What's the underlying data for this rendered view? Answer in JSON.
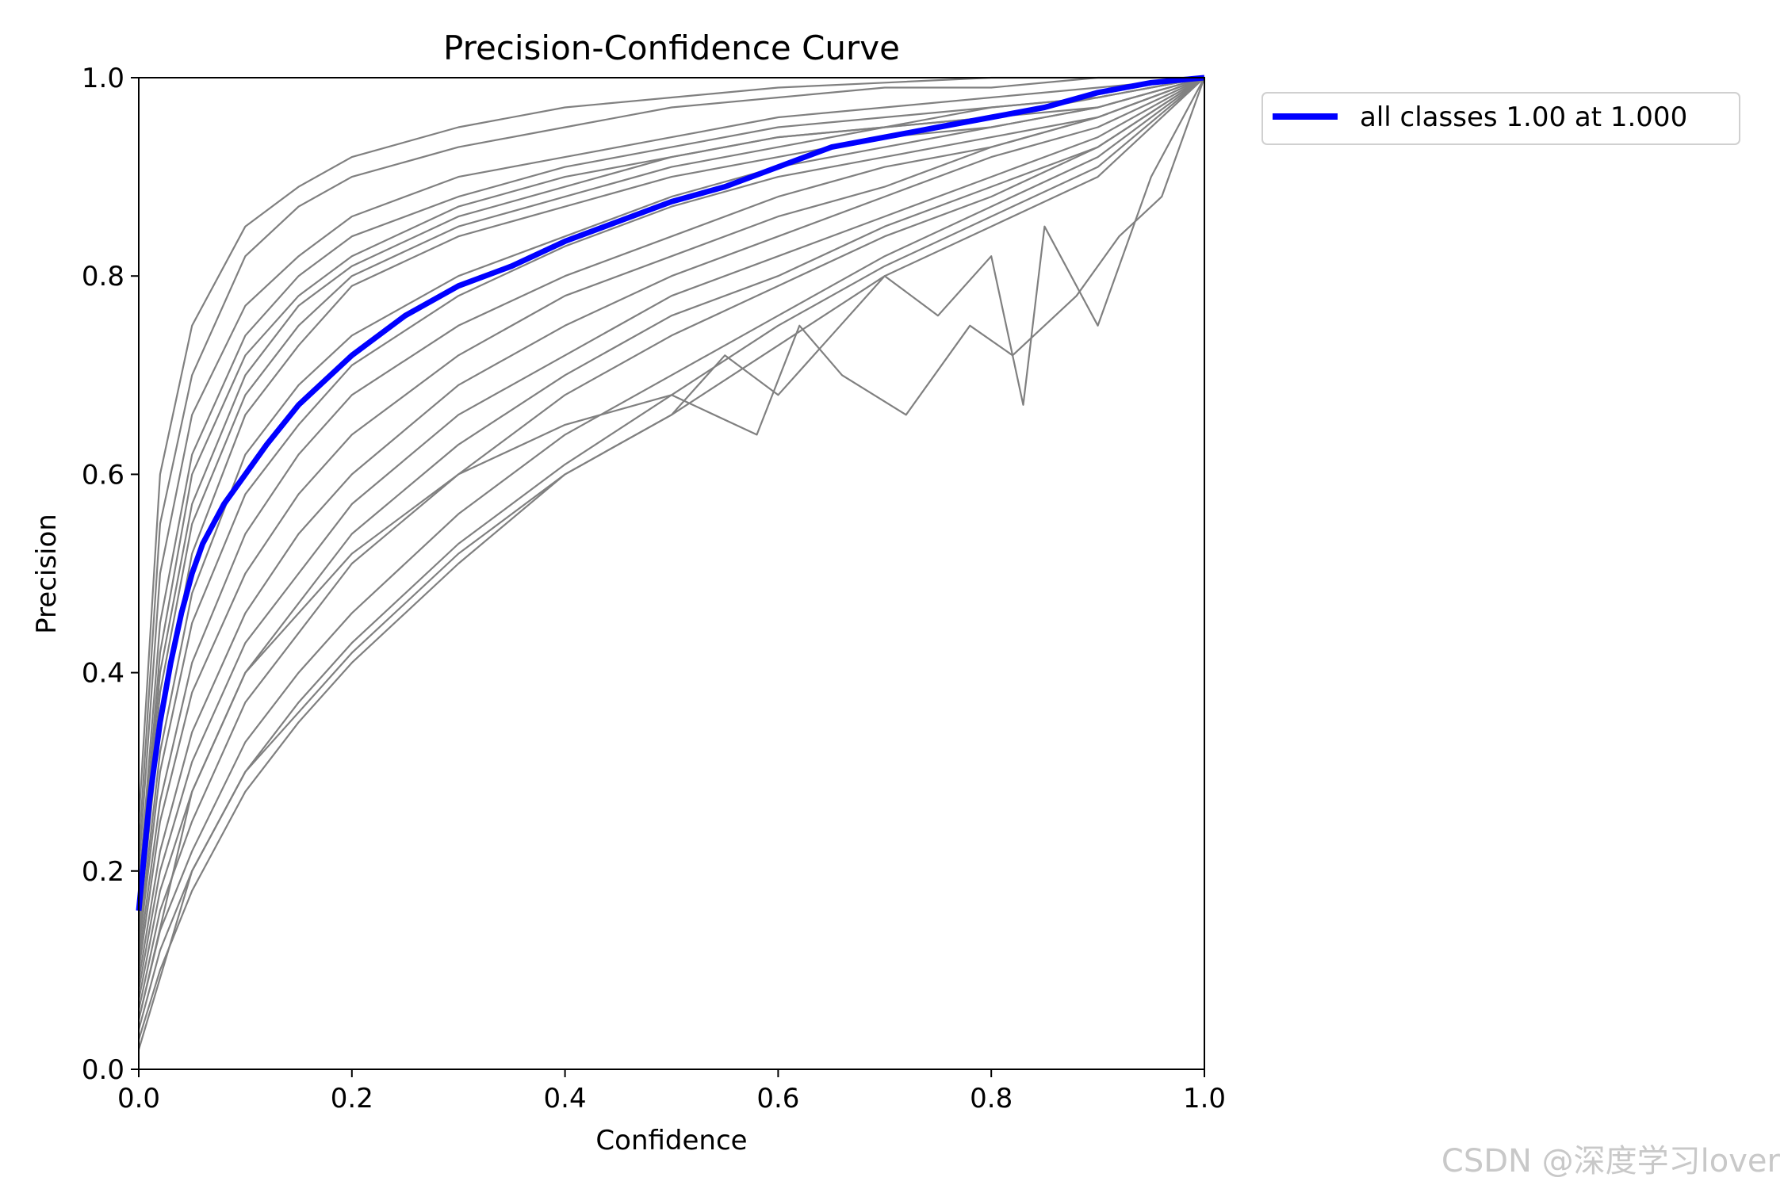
{
  "chart_data": {
    "type": "line",
    "title": "Precision-Confidence Curve",
    "xlabel": "Confidence",
    "ylabel": "Precision",
    "xlim": [
      0.0,
      1.0
    ],
    "ylim": [
      0.0,
      1.0
    ],
    "xticks": [
      "0.0",
      "0.2",
      "0.4",
      "0.6",
      "0.8",
      "1.0"
    ],
    "yticks": [
      "0.0",
      "0.2",
      "0.4",
      "0.6",
      "0.8",
      "1.0"
    ],
    "grid": false,
    "legend_position": "outside-top-right",
    "class_series_color": "#808080",
    "class_series": [
      {
        "x": [
          0,
          0.02,
          0.05,
          0.1,
          0.15,
          0.2,
          0.3,
          0.4,
          0.5,
          0.6,
          0.7,
          0.8,
          0.9,
          1.0
        ],
        "y": [
          0.25,
          0.6,
          0.75,
          0.85,
          0.89,
          0.92,
          0.95,
          0.97,
          0.98,
          0.99,
          0.995,
          1.0,
          1.0,
          1.0
        ]
      },
      {
        "x": [
          0,
          0.02,
          0.05,
          0.1,
          0.15,
          0.2,
          0.3,
          0.4,
          0.5,
          0.6,
          0.7,
          0.8,
          0.9,
          1.0
        ],
        "y": [
          0.22,
          0.55,
          0.7,
          0.82,
          0.87,
          0.9,
          0.93,
          0.95,
          0.97,
          0.98,
          0.99,
          0.99,
          1.0,
          1.0
        ]
      },
      {
        "x": [
          0,
          0.02,
          0.05,
          0.1,
          0.15,
          0.2,
          0.3,
          0.4,
          0.5,
          0.6,
          0.7,
          0.8,
          0.9,
          1.0
        ],
        "y": [
          0.2,
          0.5,
          0.66,
          0.77,
          0.82,
          0.86,
          0.9,
          0.92,
          0.94,
          0.96,
          0.97,
          0.98,
          0.99,
          1.0
        ]
      },
      {
        "x": [
          0,
          0.02,
          0.05,
          0.1,
          0.15,
          0.2,
          0.3,
          0.4,
          0.5,
          0.6,
          0.7,
          0.8,
          0.9,
          1.0
        ],
        "y": [
          0.18,
          0.45,
          0.62,
          0.74,
          0.8,
          0.84,
          0.88,
          0.91,
          0.93,
          0.95,
          0.96,
          0.97,
          0.98,
          1.0
        ]
      },
      {
        "x": [
          0,
          0.02,
          0.05,
          0.1,
          0.15,
          0.2,
          0.3,
          0.4,
          0.5,
          0.6,
          0.7,
          0.8,
          0.9,
          1.0
        ],
        "y": [
          0.17,
          0.42,
          0.6,
          0.72,
          0.78,
          0.82,
          0.87,
          0.9,
          0.92,
          0.94,
          0.95,
          0.97,
          0.98,
          1.0
        ]
      },
      {
        "x": [
          0,
          0.02,
          0.05,
          0.1,
          0.15,
          0.2,
          0.3,
          0.4,
          0.5,
          0.6,
          0.7,
          0.8,
          0.9,
          1.0
        ],
        "y": [
          0.16,
          0.4,
          0.57,
          0.7,
          0.77,
          0.81,
          0.86,
          0.89,
          0.92,
          0.94,
          0.95,
          0.96,
          0.98,
          1.0
        ]
      },
      {
        "x": [
          0,
          0.02,
          0.05,
          0.1,
          0.15,
          0.2,
          0.3,
          0.4,
          0.5,
          0.6,
          0.7,
          0.8,
          0.9,
          1.0
        ],
        "y": [
          0.15,
          0.38,
          0.55,
          0.68,
          0.75,
          0.8,
          0.85,
          0.88,
          0.91,
          0.93,
          0.95,
          0.96,
          0.97,
          1.0
        ]
      },
      {
        "x": [
          0,
          0.02,
          0.05,
          0.1,
          0.15,
          0.2,
          0.3,
          0.4,
          0.5,
          0.6,
          0.7,
          0.8,
          0.9,
          1.0
        ],
        "y": [
          0.14,
          0.35,
          0.52,
          0.66,
          0.73,
          0.79,
          0.84,
          0.87,
          0.9,
          0.92,
          0.94,
          0.95,
          0.97,
          1.0
        ]
      },
      {
        "x": [
          0,
          0.02,
          0.05,
          0.1,
          0.15,
          0.2,
          0.3,
          0.4,
          0.5,
          0.6,
          0.7,
          0.8,
          0.9,
          1.0
        ],
        "y": [
          0.13,
          0.32,
          0.48,
          0.62,
          0.69,
          0.74,
          0.8,
          0.84,
          0.88,
          0.91,
          0.93,
          0.95,
          0.97,
          1.0
        ]
      },
      {
        "x": [
          0,
          0.02,
          0.05,
          0.1,
          0.15,
          0.2,
          0.3,
          0.4,
          0.5,
          0.6,
          0.7,
          0.8,
          0.9,
          1.0
        ],
        "y": [
          0.12,
          0.3,
          0.45,
          0.58,
          0.65,
          0.71,
          0.78,
          0.83,
          0.87,
          0.9,
          0.92,
          0.94,
          0.96,
          1.0
        ]
      },
      {
        "x": [
          0,
          0.02,
          0.05,
          0.1,
          0.15,
          0.2,
          0.3,
          0.4,
          0.5,
          0.6,
          0.7,
          0.8,
          0.9,
          1.0
        ],
        "y": [
          0.11,
          0.27,
          0.41,
          0.54,
          0.62,
          0.68,
          0.75,
          0.8,
          0.84,
          0.88,
          0.91,
          0.93,
          0.96,
          1.0
        ]
      },
      {
        "x": [
          0,
          0.02,
          0.05,
          0.1,
          0.15,
          0.2,
          0.3,
          0.4,
          0.5,
          0.6,
          0.7,
          0.8,
          0.9,
          1.0
        ],
        "y": [
          0.1,
          0.25,
          0.38,
          0.5,
          0.58,
          0.64,
          0.72,
          0.78,
          0.82,
          0.86,
          0.89,
          0.93,
          0.96,
          1.0
        ]
      },
      {
        "x": [
          0,
          0.02,
          0.05,
          0.1,
          0.15,
          0.2,
          0.3,
          0.4,
          0.5,
          0.6,
          0.7,
          0.8,
          0.9,
          1.0
        ],
        "y": [
          0.09,
          0.22,
          0.34,
          0.46,
          0.54,
          0.6,
          0.69,
          0.75,
          0.8,
          0.84,
          0.88,
          0.92,
          0.95,
          1.0
        ]
      },
      {
        "x": [
          0,
          0.02,
          0.05,
          0.1,
          0.15,
          0.2,
          0.3,
          0.4,
          0.5,
          0.6,
          0.7,
          0.8,
          0.9,
          1.0
        ],
        "y": [
          0.08,
          0.2,
          0.31,
          0.43,
          0.5,
          0.57,
          0.66,
          0.72,
          0.78,
          0.82,
          0.86,
          0.9,
          0.94,
          1.0
        ]
      },
      {
        "x": [
          0,
          0.02,
          0.05,
          0.1,
          0.15,
          0.2,
          0.3,
          0.4,
          0.5,
          0.6,
          0.7,
          0.8,
          0.9,
          1.0
        ],
        "y": [
          0.07,
          0.18,
          0.28,
          0.4,
          0.47,
          0.54,
          0.63,
          0.7,
          0.76,
          0.8,
          0.85,
          0.89,
          0.93,
          1.0
        ]
      },
      {
        "x": [
          0,
          0.02,
          0.05,
          0.1,
          0.15,
          0.2,
          0.3,
          0.4,
          0.5,
          0.6,
          0.7,
          0.8,
          0.9,
          1.0
        ],
        "y": [
          0.06,
          0.16,
          0.25,
          0.37,
          0.44,
          0.51,
          0.6,
          0.68,
          0.74,
          0.79,
          0.84,
          0.88,
          0.93,
          1.0
        ]
      },
      {
        "x": [
          0,
          0.02,
          0.05,
          0.1,
          0.15,
          0.2,
          0.3,
          0.4,
          0.5,
          0.6,
          0.7,
          0.8,
          0.9,
          1.0
        ],
        "y": [
          0.05,
          0.14,
          0.22,
          0.33,
          0.4,
          0.46,
          0.56,
          0.64,
          0.7,
          0.76,
          0.82,
          0.87,
          0.92,
          1.0
        ]
      },
      {
        "x": [
          0,
          0.02,
          0.05,
          0.1,
          0.15,
          0.2,
          0.3,
          0.4,
          0.5,
          0.6,
          0.7,
          0.8,
          0.9,
          1.0
        ],
        "y": [
          0.04,
          0.12,
          0.2,
          0.3,
          0.37,
          0.43,
          0.53,
          0.61,
          0.68,
          0.75,
          0.81,
          0.86,
          0.91,
          1.0
        ]
      },
      {
        "x": [
          0,
          0.02,
          0.05,
          0.1,
          0.15,
          0.2,
          0.3,
          0.4,
          0.5,
          0.6,
          0.7,
          0.8,
          0.9,
          1.0
        ],
        "y": [
          0.03,
          0.1,
          0.18,
          0.28,
          0.35,
          0.41,
          0.51,
          0.6,
          0.66,
          0.73,
          0.8,
          0.85,
          0.9,
          1.0
        ]
      },
      {
        "x": [
          0,
          0.05,
          0.1,
          0.2,
          0.3,
          0.4,
          0.5,
          0.55,
          0.6,
          0.65,
          0.7,
          0.75,
          0.8,
          0.83,
          0.85,
          0.9,
          0.95,
          1.0
        ],
        "y": [
          0.02,
          0.2,
          0.3,
          0.42,
          0.52,
          0.6,
          0.66,
          0.72,
          0.68,
          0.74,
          0.8,
          0.76,
          0.82,
          0.67,
          0.85,
          0.75,
          0.9,
          1.0
        ]
      },
      {
        "x": [
          0,
          0.05,
          0.1,
          0.2,
          0.3,
          0.4,
          0.5,
          0.58,
          0.62,
          0.66,
          0.72,
          0.78,
          0.82,
          0.88,
          0.92,
          0.96,
          1.0
        ],
        "y": [
          0.05,
          0.28,
          0.4,
          0.52,
          0.6,
          0.65,
          0.68,
          0.64,
          0.75,
          0.7,
          0.66,
          0.75,
          0.72,
          0.78,
          0.84,
          0.88,
          1.0
        ]
      }
    ],
    "series": [
      {
        "name": "all classes 1.00 at 1.000",
        "color": "#0000ff",
        "x": [
          0.0,
          0.01,
          0.02,
          0.03,
          0.04,
          0.05,
          0.06,
          0.08,
          0.1,
          0.12,
          0.15,
          0.18,
          0.2,
          0.25,
          0.3,
          0.35,
          0.4,
          0.45,
          0.5,
          0.55,
          0.6,
          0.65,
          0.7,
          0.75,
          0.8,
          0.85,
          0.9,
          0.95,
          1.0
        ],
        "y": [
          0.16,
          0.27,
          0.35,
          0.41,
          0.46,
          0.5,
          0.53,
          0.57,
          0.6,
          0.63,
          0.67,
          0.7,
          0.72,
          0.76,
          0.79,
          0.81,
          0.835,
          0.855,
          0.875,
          0.89,
          0.91,
          0.93,
          0.94,
          0.95,
          0.96,
          0.97,
          0.985,
          0.995,
          1.0
        ]
      }
    ],
    "legend": [
      "all classes 1.00 at 1.000"
    ]
  },
  "watermark": "CSDN @深度学习lover"
}
